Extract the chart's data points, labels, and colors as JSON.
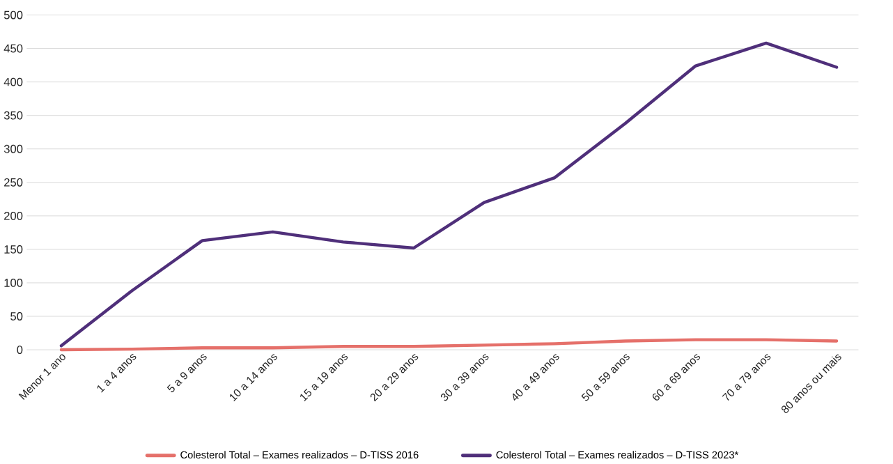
{
  "chart_data": {
    "type": "line",
    "categories": [
      "Menor 1 ano",
      "1 a 4 anos",
      "5 a 9 anos",
      "10 a 14 anos",
      "15 a 19 anos",
      "20 a 29 anos",
      "30 a 39 anos",
      "40 a 49 anos",
      "50 a 59 anos",
      "60 a 69 anos",
      "70 a 79 anos",
      "80 anos ou mais"
    ],
    "series": [
      {
        "name": "Colesterol Total – Exames realizados – D-TISS 2016",
        "color": "#e5706a",
        "values": [
          0,
          1,
          3,
          3,
          5,
          5,
          7,
          9,
          13,
          15,
          15,
          13
        ]
      },
      {
        "name": "Colesterol Total – Exames realizados – D-TISS 2023*",
        "color": "#4f2f7a",
        "values": [
          6,
          88,
          163,
          176,
          161,
          152,
          220,
          257,
          338,
          424,
          458,
          422
        ]
      }
    ],
    "ylim": [
      0,
      500
    ],
    "yticks": [
      0,
      50,
      100,
      150,
      200,
      250,
      300,
      350,
      400,
      450,
      500
    ],
    "grid": "y",
    "legend": "bottom"
  }
}
